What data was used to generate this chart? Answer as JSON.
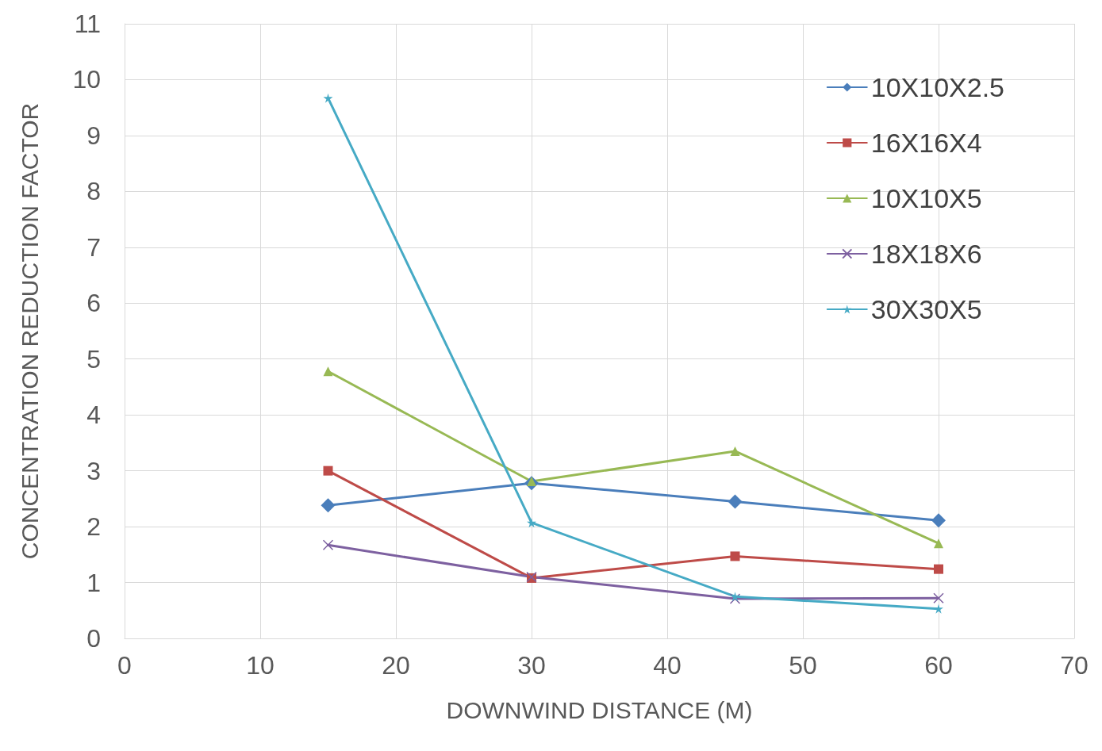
{
  "chart_data": {
    "type": "line",
    "xlabel": "DOWNWIND DISTANCE (M)",
    "ylabel": "CONCENTRATION REDUCTION FACTOR",
    "x": [
      15,
      30,
      45,
      60
    ],
    "series": [
      {
        "name": "10X10X2.5",
        "color": "#4a7ebb",
        "marker": "diamond",
        "values": [
          2.38,
          2.78,
          2.45,
          2.11
        ]
      },
      {
        "name": "16X16X4",
        "color": "#be4b48",
        "marker": "square",
        "values": [
          3.0,
          1.08,
          1.47,
          1.24
        ]
      },
      {
        "name": "10X10X5",
        "color": "#98b954",
        "marker": "triangle",
        "values": [
          4.78,
          2.81,
          3.35,
          1.7
        ]
      },
      {
        "name": "18X18X6",
        "color": "#7d60a0",
        "marker": "cross",
        "values": [
          1.67,
          1.1,
          0.71,
          0.72
        ]
      },
      {
        "name": "30X30X5",
        "color": "#46aac5",
        "marker": "star",
        "values": [
          9.67,
          2.07,
          0.75,
          0.53
        ]
      }
    ],
    "xlim": [
      0,
      70
    ],
    "xticks": [
      0,
      10,
      20,
      30,
      40,
      50,
      60,
      70
    ],
    "ylim": [
      0,
      11
    ],
    "yticks": [
      0,
      1,
      2,
      3,
      4,
      5,
      6,
      7,
      8,
      9,
      10,
      11
    ],
    "grid": true,
    "legend": "top right",
    "line_style": "solid"
  }
}
